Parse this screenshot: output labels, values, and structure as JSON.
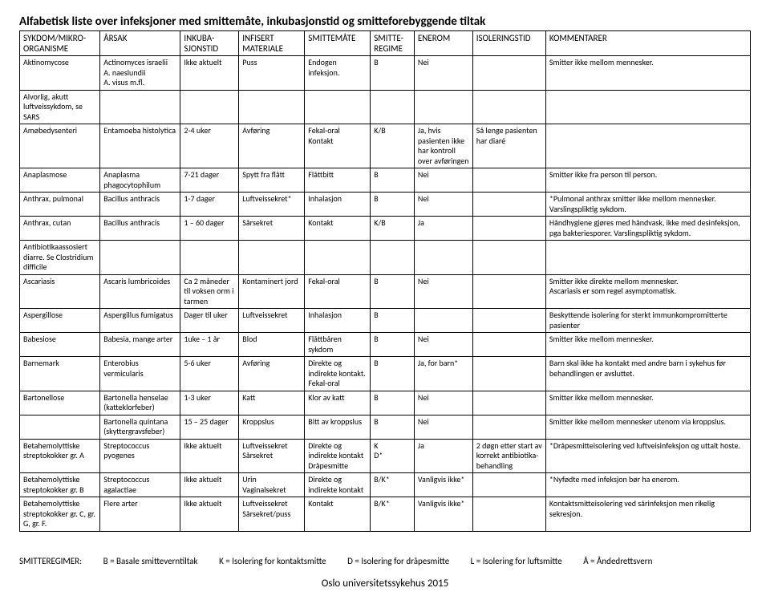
{
  "title": "Alfabetisk liste over infeksjoner med smittemåte, inkubasjonstid og smitteforebyggende tiltak",
  "columns": [
    {
      "label": "SYKDOM/MIKRO-ORGANISME",
      "width": "11%"
    },
    {
      "label": "ÅRSAK",
      "width": "11%"
    },
    {
      "label": "INKUBA-SJONSTID",
      "width": "8%"
    },
    {
      "label": "INFISERT MATERIALE",
      "width": "9%"
    },
    {
      "label": "SMITTEMÅTE",
      "width": "9%"
    },
    {
      "label": "SMITTE-REGIME",
      "width": "6%"
    },
    {
      "label": "ENEROM",
      "width": "8%"
    },
    {
      "label": "ISOLERINGSTID",
      "width": "10%"
    },
    {
      "label": "KOMMENTARER",
      "width": "28%"
    }
  ],
  "rows": [
    [
      "Aktinomycose",
      "Actinomyces israelii\nA. naeslundii\nA. visus  m.fl.",
      "Ikke aktuelt",
      "Puss",
      "Endogen infeksjon.",
      "B",
      "Nei",
      "",
      "Smitter ikke mellom mennesker."
    ],
    [
      "Alvorlig, akutt luftveissykdom, se SARS",
      "",
      "",
      "",
      "",
      "",
      "",
      "",
      ""
    ],
    [
      "Amøbedysenteri",
      "Entamoeba histolytica",
      "2-4 uker",
      "Avføring",
      "Fekal-oral Kontakt",
      "K/B",
      "Ja, hvis pasienten ikke har kontroll over avføringen",
      "Så lenge pasienten har diaré",
      ""
    ],
    [
      "Anaplasmose",
      "Anaplasma phagocytophilum",
      "7-21 dager",
      "Spytt fra flått",
      "Flåttbitt",
      "B",
      "Nei",
      "",
      "Smitter ikke fra person til person."
    ],
    [
      "Anthrax, pulmonal",
      "Bacillus anthracis",
      "1-7 dager",
      "Luftveissekret*",
      "Inhalasjon",
      "B",
      "Nei",
      "",
      "*Pulmonal anthrax smitter ikke mellom mennesker.\nVarslingspliktig sykdom."
    ],
    [
      "Anthrax, cutan",
      "Bacillus anthracis",
      "1 – 60 dager",
      "Sårsekret",
      "Kontakt",
      "K/B",
      "Ja",
      "",
      "Håndhygiene gjøres med håndvask, ikke med desinfeksjon, pga bakteriesporer. Varslingspliktig sykdom."
    ],
    [
      "Antibiotikaassosiert diarre. Se Clostridium difficile",
      "",
      "",
      "",
      "",
      "",
      "",
      "",
      ""
    ],
    [
      "Ascariasis",
      "Ascaris lumbricoides",
      "Ca 2 måneder til voksen orm i tarmen",
      "Kontaminert jord",
      "Fekal-oral",
      "B",
      "Nei",
      "",
      "Smitter ikke direkte mellom mennesker.\nAscariasis er som regel asymptomatisk."
    ],
    [
      "Aspergillose",
      "Aspergillus fumigatus",
      "Dager til uker",
      "Luftveissekret",
      "Inhalasjon",
      "B",
      "",
      "",
      "Beskyttende isolering for sterkt immunkompromitterte pasienter"
    ],
    [
      "Babesiose",
      "Babesia, mange arter",
      "1uke – 1 år",
      "Blod",
      "Flåttbåren sykdom",
      "B",
      "Nei",
      "",
      "Smitter ikke mellom mennesker."
    ],
    [
      "Barnemark",
      "Enterobius vermicularis",
      "5-6 uker",
      "Avføring",
      "Direkte og indirekte kontakt.\nFekal-oral",
      "B",
      "Ja, for barn*",
      "",
      "Barn skal ikke ha kontakt med andre barn i sykehus før behandlingen er avsluttet."
    ],
    [
      "Bartonellose",
      "Bartonella henselae (katteklorfeber)",
      "1-3 uker",
      "Katt",
      "Klor av katt",
      "B",
      "Nei",
      "",
      "Smitter ikke mellom mennesker."
    ],
    [
      "",
      "Bartonella quintana (skyttergravsfeber)",
      "15 – 25 dager",
      "Kroppslus",
      "Bitt av kroppslus",
      "B",
      "Nei",
      "",
      "Smitter ikke mellom mennesker utenom via kroppslus."
    ],
    [
      "Betahemolyttiske streptokokker gr. A",
      "Streptococcus pyogenes",
      "Ikke aktuelt",
      "Luftveissekret Sårsekret",
      "Direkte og indirekte kontakt Dråpesmitte",
      "K\nD*",
      "Ja",
      "2 døgn etter start av korrekt antibiotika-behandling",
      "*Dråpesmitteisolering ved luftveisinfeksjon og uttalt hoste."
    ],
    [
      "Betahemolyttiske streptokokker gr. B",
      "Streptococcus agalactiae",
      "Ikke aktuelt",
      "Urin\nVaginalsekret",
      "Direkte og indirekte kontakt",
      "B/K*",
      "Vanligvis ikke*",
      "",
      "*Nyfødte med infeksjon bør ha enerom."
    ],
    [
      "Betahemolyttiske streptokokker gr. C, gr. G, gr. F.",
      "Flere arter",
      "Ikke aktuelt",
      "Luftveissekret Sårsekret/puss",
      "Kontakt",
      "B/K*",
      "Vanligvis ikke*",
      "",
      "Kontaktsmitteisolering ved sårinfeksjon men rikelig sekresjon."
    ]
  ],
  "legend": {
    "label": "SMITTEREGIMER:",
    "items": [
      "B = Basale smitteverntiltak",
      "K = Isolering for kontaktsmitte",
      "D = Isolering for dråpesmitte",
      "L = Isolering for luftsmitte",
      "Å = Åndedrettsvern"
    ]
  },
  "footer": "Oslo universitetssykehus 2015"
}
